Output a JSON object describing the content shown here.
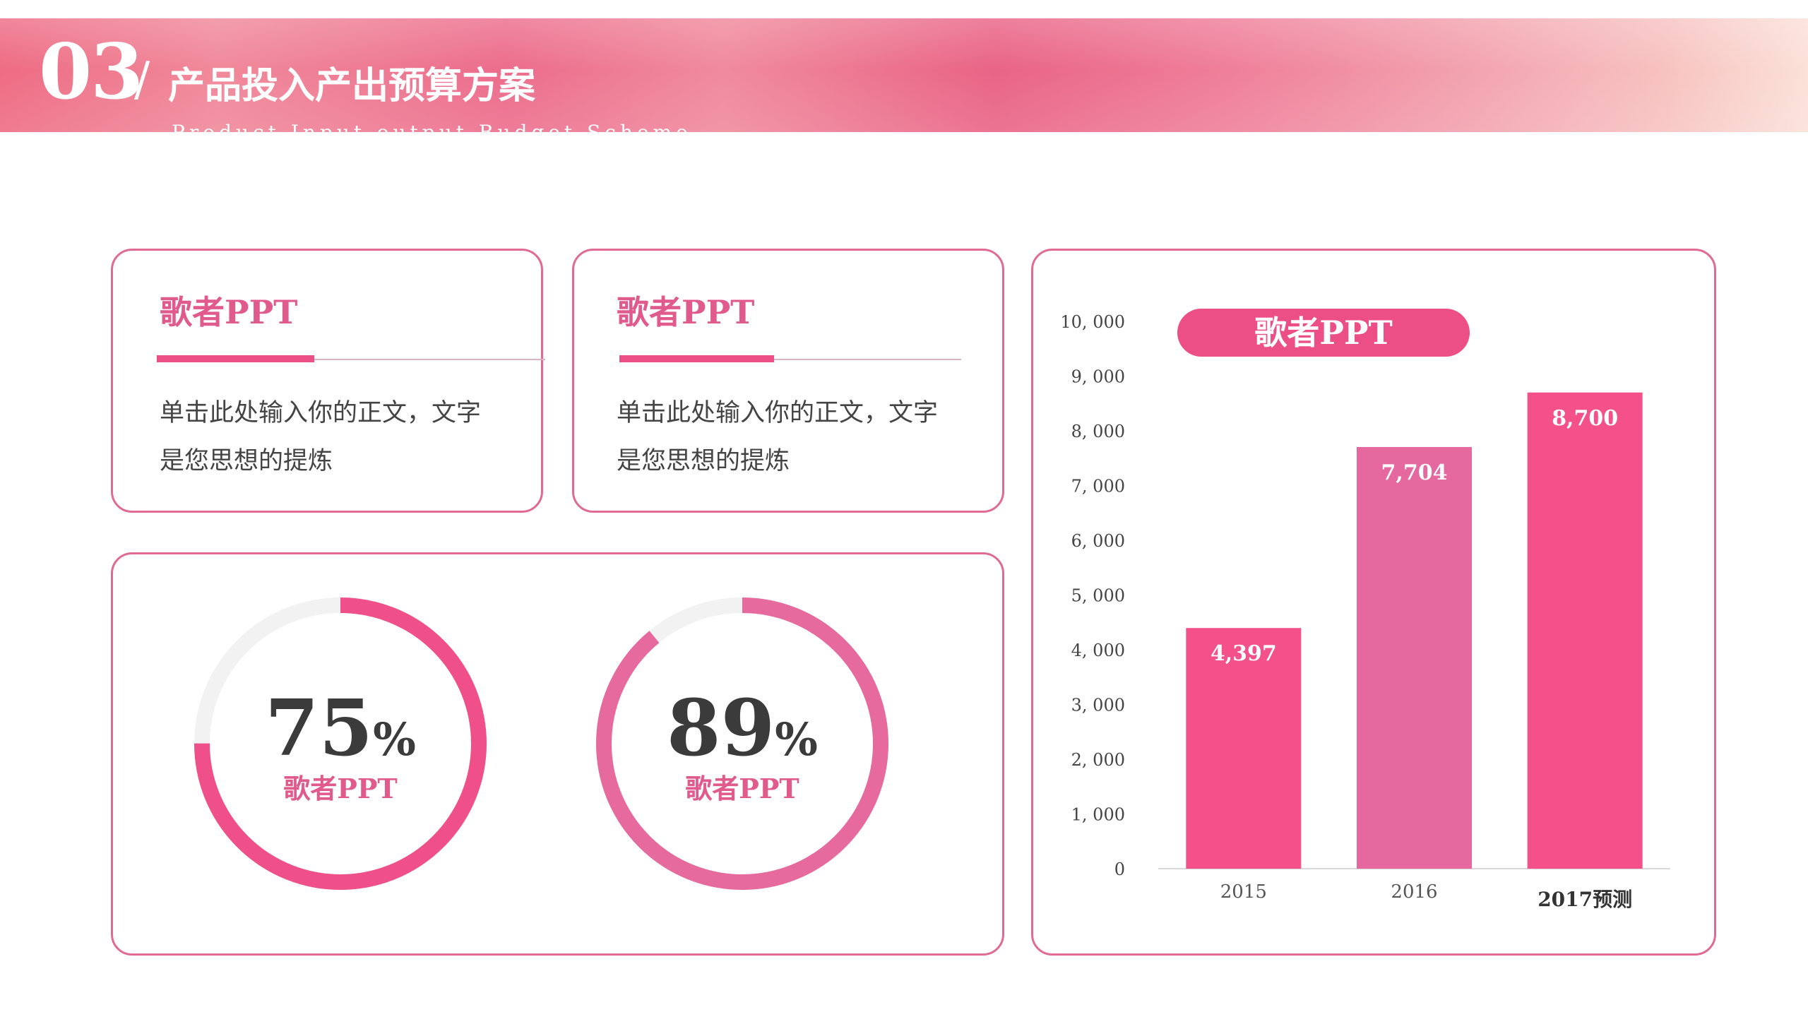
{
  "header": {
    "number": "03",
    "slash": "/",
    "title": "产品投入产出预算方案",
    "subtitle": "Product Input-output Budget Scheme"
  },
  "cards": [
    {
      "title": "歌者PPT",
      "body_line1": "单击此处输入你的正文，文字",
      "body_line2": "是您思想的提炼"
    },
    {
      "title": "歌者PPT",
      "body_line1": "单击此处输入你的正文，文字",
      "body_line2": "是您思想的提炼"
    }
  ],
  "donuts": [
    {
      "value": "75",
      "unit": "%",
      "label": "歌者PPT",
      "percent": 75,
      "color": "#f0508a"
    },
    {
      "value": "89",
      "unit": "%",
      "label": "歌者PPT",
      "percent": 89,
      "color": "#e66a9d"
    }
  ],
  "chart_data": {
    "type": "bar",
    "title": "歌者PPT",
    "categories": [
      "2015",
      "2016",
      "2017预测"
    ],
    "values": [
      4397,
      7704,
      8700
    ],
    "value_labels": [
      "4,397",
      "7,704",
      "8,700"
    ],
    "ylim": [
      0,
      10000
    ],
    "yticks": [
      0,
      1000,
      2000,
      3000,
      4000,
      5000,
      6000,
      7000,
      8000,
      9000,
      10000
    ],
    "ytick_labels": [
      "0",
      "1, 000",
      "2, 000",
      "3, 000",
      "4, 000",
      "5, 000",
      "6, 000",
      "7, 000",
      "8, 000",
      "9, 000",
      "10, 000"
    ],
    "bar_colors": [
      "#f4508a",
      "#e5689f",
      "#f4508a"
    ],
    "grid": false,
    "legend": "none"
  }
}
